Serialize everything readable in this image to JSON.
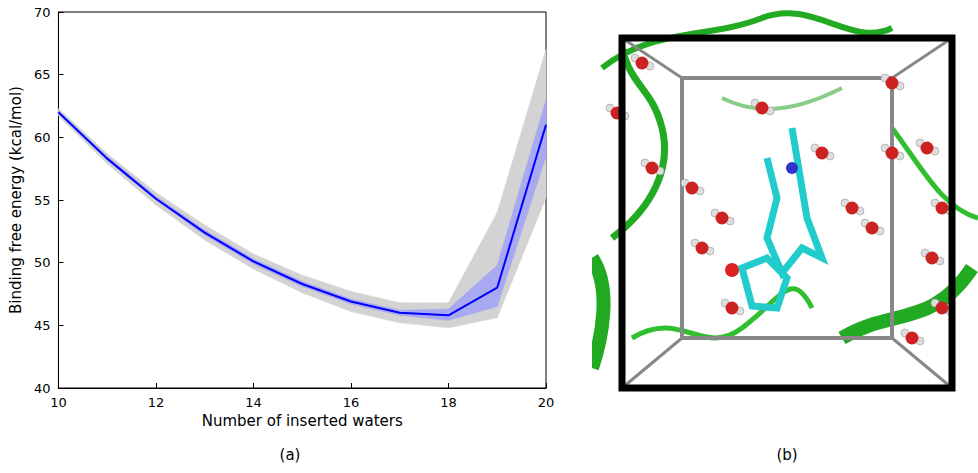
{
  "chart_data": {
    "type": "line",
    "xlabel": "Number of inserted waters",
    "ylabel": "Binding free energy (kcal/mol)",
    "x": [
      10,
      11,
      12,
      13,
      14,
      15,
      16,
      17,
      18,
      19,
      20
    ],
    "series": [
      {
        "color": "#0000ff",
        "values": [
          62.0,
          58.3,
          55.1,
          52.4,
          50.1,
          48.3,
          46.9,
          46.0,
          45.8,
          48.0,
          61.0
        ]
      }
    ],
    "outer_band": {
      "color": "#d3d3d3",
      "lower": [
        61.7,
        57.9,
        54.6,
        51.8,
        49.5,
        47.6,
        46.1,
        45.2,
        44.8,
        45.6,
        55.2
      ],
      "upper": [
        62.3,
        58.7,
        55.6,
        53.0,
        50.7,
        49.0,
        47.7,
        46.8,
        46.8,
        54.0,
        67.0
      ]
    },
    "inner_band": {
      "color": "#a9a9f2",
      "lower": [
        61.9,
        58.2,
        55.0,
        52.2,
        49.9,
        48.1,
        46.7,
        45.8,
        45.4,
        46.5,
        58.5
      ],
      "upper": [
        62.1,
        58.5,
        55.3,
        52.6,
        50.3,
        48.5,
        47.1,
        46.2,
        46.3,
        49.8,
        63.0
      ]
    },
    "xlim": [
      10,
      20
    ],
    "xticks": [
      10,
      12,
      14,
      16,
      18,
      20
    ],
    "ylim": [
      40,
      70
    ],
    "yticks": [
      40,
      45,
      50,
      55,
      60,
      65,
      70
    ],
    "grid": false,
    "caption": "(a)"
  },
  "panel_b": {
    "caption": "(b)"
  }
}
